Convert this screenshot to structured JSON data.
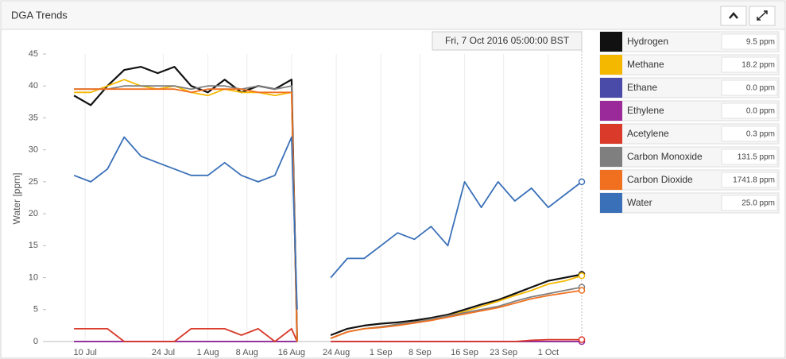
{
  "chart_data": {
    "type": "line",
    "title": "DGA Trends",
    "ylabel": "Water [ppm]",
    "tooltip": "Fri, 7 Oct 2016 05:00:00 BST",
    "x": [
      "2016-07-08",
      "2016-07-11",
      "2016-07-14",
      "2016-07-17",
      "2016-07-20",
      "2016-07-23",
      "2016-07-26",
      "2016-07-29",
      "2016-08-01",
      "2016-08-04",
      "2016-08-07",
      "2016-08-10",
      "2016-08-13",
      "2016-08-16",
      "2016-08-17",
      "2016-08-20",
      "2016-08-23",
      "2016-08-26",
      "2016-08-29",
      "2016-09-01",
      "2016-09-04",
      "2016-09-07",
      "2016-09-10",
      "2016-09-13",
      "2016-09-16",
      "2016-09-19",
      "2016-09-22",
      "2016-09-25",
      "2016-09-28",
      "2016-10-01",
      "2016-10-04",
      "2016-10-07"
    ],
    "xlim": [
      "2016-07-03",
      "2016-10-07"
    ],
    "xticks": [
      {
        "value": "2016-07-10",
        "label": "10 Jul"
      },
      {
        "value": "2016-07-24",
        "label": "24 Jul"
      },
      {
        "value": "2016-08-01",
        "label": "1 Aug"
      },
      {
        "value": "2016-08-08",
        "label": "8 Aug"
      },
      {
        "value": "2016-08-16",
        "label": "16 Aug"
      },
      {
        "value": "2016-08-24",
        "label": "24 Aug"
      },
      {
        "value": "2016-09-01",
        "label": "1 Sep"
      },
      {
        "value": "2016-09-08",
        "label": "8 Sep"
      },
      {
        "value": "2016-09-16",
        "label": "16 Sep"
      },
      {
        "value": "2016-09-23",
        "label": "23 Sep"
      },
      {
        "value": "2016-10-01",
        "label": "1 Oct"
      }
    ],
    "ylim": [
      0,
      45
    ],
    "yticks": [
      0,
      5,
      10,
      15,
      20,
      25,
      30,
      35,
      40,
      45
    ],
    "grid": "x",
    "series": [
      {
        "name": "Hydrogen",
        "color": "#111111",
        "current_label": "9.5 ppm",
        "values": [
          38.5,
          37,
          40,
          42.5,
          43,
          42,
          43,
          40,
          39,
          41,
          39,
          40,
          39.5,
          41,
          0,
          null,
          1,
          2,
          2.5,
          2.8,
          3,
          3.3,
          3.7,
          4.2,
          5,
          5.8,
          6.5,
          7.5,
          8.5,
          9.5,
          10,
          10.5
        ]
      },
      {
        "name": "Methane",
        "color": "#f5b800",
        "current_label": "18.2 ppm",
        "values": [
          39,
          39,
          40,
          41,
          40,
          39.5,
          40,
          39,
          38.5,
          39.5,
          39,
          39,
          38.5,
          39,
          0,
          null,
          0.5,
          1.5,
          2,
          2.3,
          2.7,
          3,
          3.5,
          4,
          4.7,
          5.5,
          6.3,
          7.2,
          8,
          9,
          9.5,
          10.3
        ]
      },
      {
        "name": "Ethane",
        "color": "#4a4aa8",
        "current_label": "0.0 ppm",
        "values": [
          0,
          0,
          0,
          0,
          0,
          0,
          0,
          0,
          0,
          0,
          0,
          0,
          0,
          0,
          0,
          null,
          0,
          0,
          0,
          0,
          0,
          0,
          0,
          0,
          0,
          0,
          0,
          0,
          0,
          0,
          0,
          0
        ]
      },
      {
        "name": "Ethylene",
        "color": "#9a2a9a",
        "current_label": "0.0 ppm",
        "values": [
          0,
          0,
          0,
          0,
          0,
          0,
          0,
          0,
          0,
          0,
          0,
          0,
          0,
          0,
          0,
          null,
          0,
          0,
          0,
          0,
          0,
          0,
          0,
          0,
          0,
          0,
          0,
          0,
          0,
          0,
          0,
          0
        ]
      },
      {
        "name": "Acetylene",
        "color": "#d93a2a",
        "current_label": "0.3 ppm",
        "values": [
          2,
          2,
          2,
          0,
          0,
          0,
          0,
          2,
          2,
          2,
          1,
          2,
          0,
          2,
          0,
          null,
          0,
          0,
          0,
          0,
          0,
          0,
          0,
          0,
          0,
          0,
          0,
          0,
          0.2,
          0.3,
          0.3,
          0.3
        ]
      },
      {
        "name": "Carbon Monoxide",
        "color": "#7f7f7f",
        "current_label": "131.5 ppm",
        "values": [
          39.5,
          39.5,
          39.5,
          40,
          40,
          40,
          40,
          39.5,
          40,
          40,
          39.5,
          40,
          39.5,
          40,
          0,
          null,
          0.5,
          1.5,
          2,
          2.3,
          2.7,
          3,
          3.5,
          4,
          4.5,
          5,
          5.5,
          6.3,
          7,
          7.5,
          8,
          8.5
        ]
      },
      {
        "name": "Carbon Dioxide",
        "color": "#f07020",
        "current_label": "1741.8 ppm",
        "values": [
          39.5,
          39.5,
          39.5,
          39.5,
          39.5,
          39.5,
          39.5,
          39,
          39.5,
          39.5,
          39.5,
          39,
          39,
          39,
          0,
          null,
          0.5,
          1.5,
          2,
          2.2,
          2.5,
          2.9,
          3.3,
          3.8,
          4.3,
          4.8,
          5.3,
          6,
          6.7,
          7.2,
          7.6,
          8
        ]
      },
      {
        "name": "Water",
        "color": "#3a70b8",
        "current_label": "25.0 ppm",
        "values": [
          26,
          25,
          27,
          32,
          29,
          28,
          27,
          26,
          26,
          28,
          26,
          25,
          26,
          32,
          5,
          null,
          10,
          13,
          13,
          15,
          17,
          16,
          18,
          15,
          25,
          21,
          25,
          22,
          24,
          21,
          23,
          25
        ]
      }
    ]
  }
}
